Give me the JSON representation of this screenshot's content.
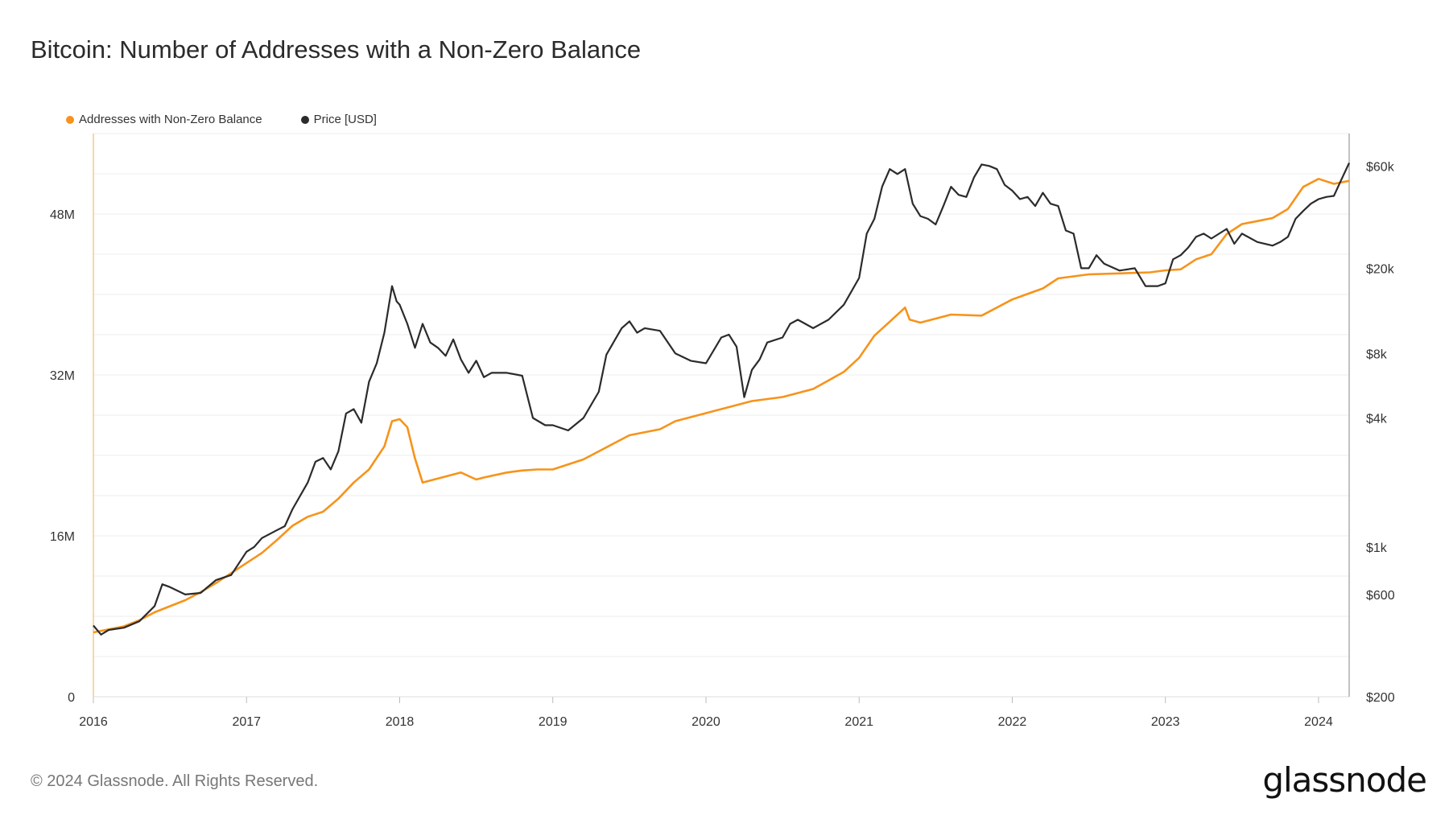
{
  "header": {
    "title": "Bitcoin: Number of Addresses with a Non-Zero Balance"
  },
  "legend": {
    "items": [
      {
        "label": "Addresses with Non-Zero Balance",
        "color": "#f7931a"
      },
      {
        "label": "Price [USD]",
        "color": "#2b2b2b"
      }
    ]
  },
  "footer": {
    "copyright": "© 2024 Glassnode. All Rights Reserved.",
    "brand": "glassnode"
  },
  "chart_data": {
    "type": "line",
    "title": "Bitcoin: Number of Addresses with a Non-Zero Balance",
    "x_ticks": [
      "2016",
      "2017",
      "2018",
      "2019",
      "2020",
      "2021",
      "2022",
      "2023",
      "2024"
    ],
    "x_range": [
      2016.0,
      2024.2
    ],
    "y_left": {
      "ticks": [
        "0",
        "16M",
        "32M",
        "48M"
      ],
      "tick_values": [
        0,
        16000000,
        32000000,
        48000000
      ],
      "range": [
        0,
        56000000
      ],
      "scale": "linear"
    },
    "y_right": {
      "ticks": [
        "$200",
        "$600",
        "$1k",
        "$4k",
        "$8k",
        "$20k",
        "$60k"
      ],
      "tick_values": [
        200,
        600,
        1000,
        4000,
        8000,
        20000,
        60000
      ],
      "range": [
        200,
        85000
      ],
      "scale": "log"
    },
    "grid": true,
    "legend_position": "top-left",
    "series": [
      {
        "name": "Addresses with Non-Zero Balance",
        "axis": "left",
        "color": "#f7931a",
        "x": [
          2016.0,
          2016.1,
          2016.2,
          2016.3,
          2016.4,
          2016.5,
          2016.6,
          2016.7,
          2016.8,
          2016.9,
          2017.0,
          2017.1,
          2017.2,
          2017.3,
          2017.4,
          2017.5,
          2017.6,
          2017.7,
          2017.8,
          2017.9,
          2017.95,
          2018.0,
          2018.05,
          2018.1,
          2018.15,
          2018.2,
          2018.3,
          2018.4,
          2018.5,
          2018.55,
          2018.7,
          2018.8,
          2018.9,
          2019.0,
          2019.2,
          2019.4,
          2019.5,
          2019.7,
          2019.8,
          2020.0,
          2020.2,
          2020.3,
          2020.5,
          2020.7,
          2020.9,
          2021.0,
          2021.1,
          2021.2,
          2021.3,
          2021.33,
          2021.4,
          2021.6,
          2021.8,
          2022.0,
          2022.2,
          2022.3,
          2022.5,
          2022.7,
          2022.9,
          2023.0,
          2023.1,
          2023.2,
          2023.3,
          2023.4,
          2023.5,
          2023.6,
          2023.7,
          2023.8,
          2023.9,
          2024.0,
          2024.1,
          2024.2
        ],
        "values": [
          6400000,
          6700000,
          7000000,
          7600000,
          8400000,
          9000000,
          9600000,
          10400000,
          11300000,
          12300000,
          13300000,
          14300000,
          15600000,
          17000000,
          17900000,
          18400000,
          19700000,
          21300000,
          22600000,
          24900000,
          27400000,
          27600000,
          26800000,
          23700000,
          21300000,
          21500000,
          21900000,
          22300000,
          21600000,
          21800000,
          22300000,
          22500000,
          22600000,
          22600000,
          23600000,
          25200000,
          26000000,
          26600000,
          27400000,
          28200000,
          29000000,
          29400000,
          29800000,
          30600000,
          32300000,
          33700000,
          35900000,
          37300000,
          38700000,
          37500000,
          37200000,
          38000000,
          37900000,
          39500000,
          40600000,
          41600000,
          42000000,
          42100000,
          42200000,
          42400000,
          42500000,
          43500000,
          44000000,
          46000000,
          47000000,
          47300000,
          47600000,
          48500000,
          50700000,
          51500000,
          51000000,
          51300000
        ]
      },
      {
        "name": "Price [USD]",
        "axis": "right",
        "color": "#2b2b2b",
        "x": [
          2016.0,
          2016.05,
          2016.1,
          2016.2,
          2016.3,
          2016.4,
          2016.45,
          2016.5,
          2016.6,
          2016.7,
          2016.8,
          2016.9,
          2017.0,
          2017.05,
          2017.1,
          2017.2,
          2017.25,
          2017.3,
          2017.4,
          2017.45,
          2017.5,
          2017.55,
          2017.6,
          2017.65,
          2017.7,
          2017.75,
          2017.8,
          2017.85,
          2017.9,
          2017.95,
          2017.98,
          2018.0,
          2018.05,
          2018.1,
          2018.15,
          2018.2,
          2018.25,
          2018.3,
          2018.35,
          2018.4,
          2018.45,
          2018.5,
          2018.55,
          2018.6,
          2018.7,
          2018.8,
          2018.87,
          2018.95,
          2019.0,
          2019.1,
          2019.2,
          2019.3,
          2019.35,
          2019.45,
          2019.5,
          2019.55,
          2019.6,
          2019.7,
          2019.8,
          2019.9,
          2020.0,
          2020.1,
          2020.15,
          2020.2,
          2020.25,
          2020.3,
          2020.35,
          2020.4,
          2020.5,
          2020.55,
          2020.6,
          2020.7,
          2020.8,
          2020.9,
          2021.0,
          2021.05,
          2021.1,
          2021.15,
          2021.2,
          2021.25,
          2021.3,
          2021.35,
          2021.4,
          2021.45,
          2021.5,
          2021.55,
          2021.6,
          2021.65,
          2021.7,
          2021.75,
          2021.8,
          2021.85,
          2021.9,
          2021.95,
          2022.0,
          2022.05,
          2022.1,
          2022.15,
          2022.2,
          2022.25,
          2022.3,
          2022.35,
          2022.4,
          2022.45,
          2022.5,
          2022.55,
          2022.6,
          2022.7,
          2022.8,
          2022.87,
          2022.95,
          2023.0,
          2023.05,
          2023.1,
          2023.15,
          2023.2,
          2023.25,
          2023.3,
          2023.4,
          2023.45,
          2023.5,
          2023.6,
          2023.7,
          2023.75,
          2023.8,
          2023.85,
          2023.9,
          2023.95,
          2024.0,
          2024.05,
          2024.1,
          2024.15,
          2024.2
        ],
        "values": [
          430,
          390,
          410,
          420,
          450,
          530,
          670,
          650,
          600,
          610,
          700,
          740,
          950,
          1000,
          1100,
          1200,
          1250,
          1500,
          2000,
          2500,
          2600,
          2300,
          2800,
          4200,
          4400,
          3800,
          5900,
          7200,
          10000,
          16500,
          14000,
          13500,
          11000,
          8500,
          11000,
          9000,
          8500,
          7800,
          9300,
          7500,
          6500,
          7400,
          6200,
          6500,
          6500,
          6300,
          4000,
          3700,
          3700,
          3500,
          4000,
          5300,
          7900,
          10500,
          11300,
          10000,
          10500,
          10200,
          8000,
          7400,
          7200,
          9500,
          9800,
          8600,
          5000,
          6700,
          7500,
          9000,
          9500,
          11000,
          11500,
          10500,
          11500,
          13500,
          18000,
          29000,
          34000,
          48000,
          58000,
          55000,
          58000,
          40000,
          35000,
          34000,
          32000,
          39000,
          48000,
          44000,
          43000,
          53000,
          61000,
          60000,
          58000,
          49000,
          46000,
          42000,
          43000,
          39000,
          45000,
          40000,
          39000,
          30000,
          29000,
          20000,
          20000,
          23000,
          21000,
          19500,
          20000,
          16500,
          16500,
          17000,
          22000,
          23000,
          25000,
          28000,
          29000,
          27500,
          30500,
          26000,
          29000,
          26500,
          25500,
          26500,
          28000,
          34000,
          37000,
          40000,
          42000,
          43000,
          43500,
          52000,
          62000
        ]
      }
    ]
  }
}
